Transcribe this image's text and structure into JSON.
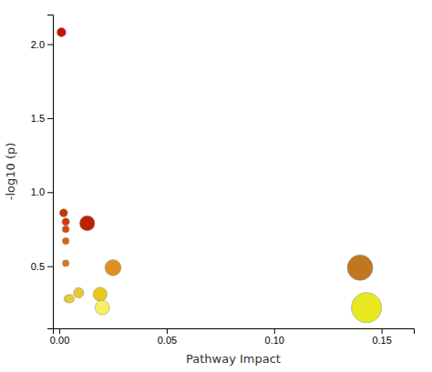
{
  "chart_data": {
    "type": "scatter",
    "xlabel": "Pathway Impact",
    "ylabel": "-log10 (p)",
    "x": [
      0.001,
      0.002,
      0.003,
      0.003,
      0.003,
      0.003,
      0.013,
      0.025,
      0.009,
      0.019,
      0.02,
      0.004,
      0.005,
      0.14,
      0.143
    ],
    "values": [
      2.08,
      0.86,
      0.8,
      0.75,
      0.67,
      0.52,
      0.79,
      0.49,
      0.32,
      0.31,
      0.22,
      0.28,
      0.28,
      0.49,
      0.22
    ],
    "sizes": [
      50,
      40,
      35,
      30,
      28,
      28,
      140,
      160,
      65,
      120,
      130,
      38,
      44,
      400,
      560
    ],
    "colors": [
      "#cc1100",
      "#cc3300",
      "#dd3300",
      "#dd4400",
      "#dd6600",
      "#e07820",
      "#bb2200",
      "#e09020",
      "#e8c830",
      "#e8c820",
      "#f5f060",
      "#ecd828",
      "#e8d030",
      "#c07820",
      "#e8e820"
    ],
    "xlim": [
      -0.003,
      0.165
    ],
    "ylim": [
      0.08,
      2.2
    ],
    "xticks": [
      {
        "value": 0,
        "label": "0.00"
      },
      {
        "value": 0.05,
        "label": "0.05"
      },
      {
        "value": 0.1,
        "label": "0.10"
      },
      {
        "value": 0.15,
        "label": "0.15"
      }
    ],
    "yticks": [
      0.5,
      {
        "value": 1,
        "label": "1.0"
      },
      1.5,
      {
        "value": 2,
        "label": "2.0"
      }
    ],
    "grid": false
  }
}
